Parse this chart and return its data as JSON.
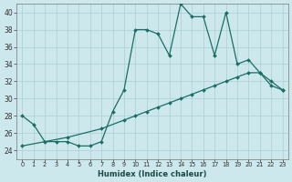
{
  "xlabel": "Humidex (Indice chaleur)",
  "bg_color": "#cce8ec",
  "grid_color": "#aacfd4",
  "line_color": "#1a6e65",
  "xmin": -0.5,
  "xmax": 23.5,
  "ymin": 23,
  "ymax": 41,
  "yticks": [
    24,
    26,
    28,
    30,
    32,
    34,
    36,
    38,
    40
  ],
  "xticks": [
    0,
    1,
    2,
    3,
    4,
    5,
    6,
    7,
    8,
    9,
    10,
    11,
    12,
    13,
    14,
    15,
    16,
    17,
    18,
    19,
    20,
    21,
    22,
    23
  ],
  "curve_x": [
    0,
    1,
    2,
    3,
    4,
    5,
    6,
    7,
    8,
    9,
    10,
    11,
    12,
    13,
    14,
    15,
    16,
    17,
    18,
    19,
    20,
    21,
    22,
    23
  ],
  "curve_y": [
    28,
    27,
    25,
    25,
    25,
    24.5,
    24.5,
    25,
    28.5,
    31,
    38,
    38,
    37.5,
    35,
    41,
    39.5,
    39.5,
    35,
    40,
    34,
    34.5,
    33,
    31.5,
    31
  ],
  "line_x": [
    0,
    4,
    7,
    9,
    10,
    11,
    12,
    13,
    14,
    15,
    16,
    17,
    18,
    19,
    20,
    21,
    22,
    23
  ],
  "line_y": [
    24.5,
    25.5,
    26.5,
    27.5,
    28.0,
    28.5,
    29.0,
    29.5,
    30.0,
    30.5,
    31.0,
    31.5,
    32.0,
    32.5,
    33.0,
    33.0,
    32.0,
    31.0
  ]
}
